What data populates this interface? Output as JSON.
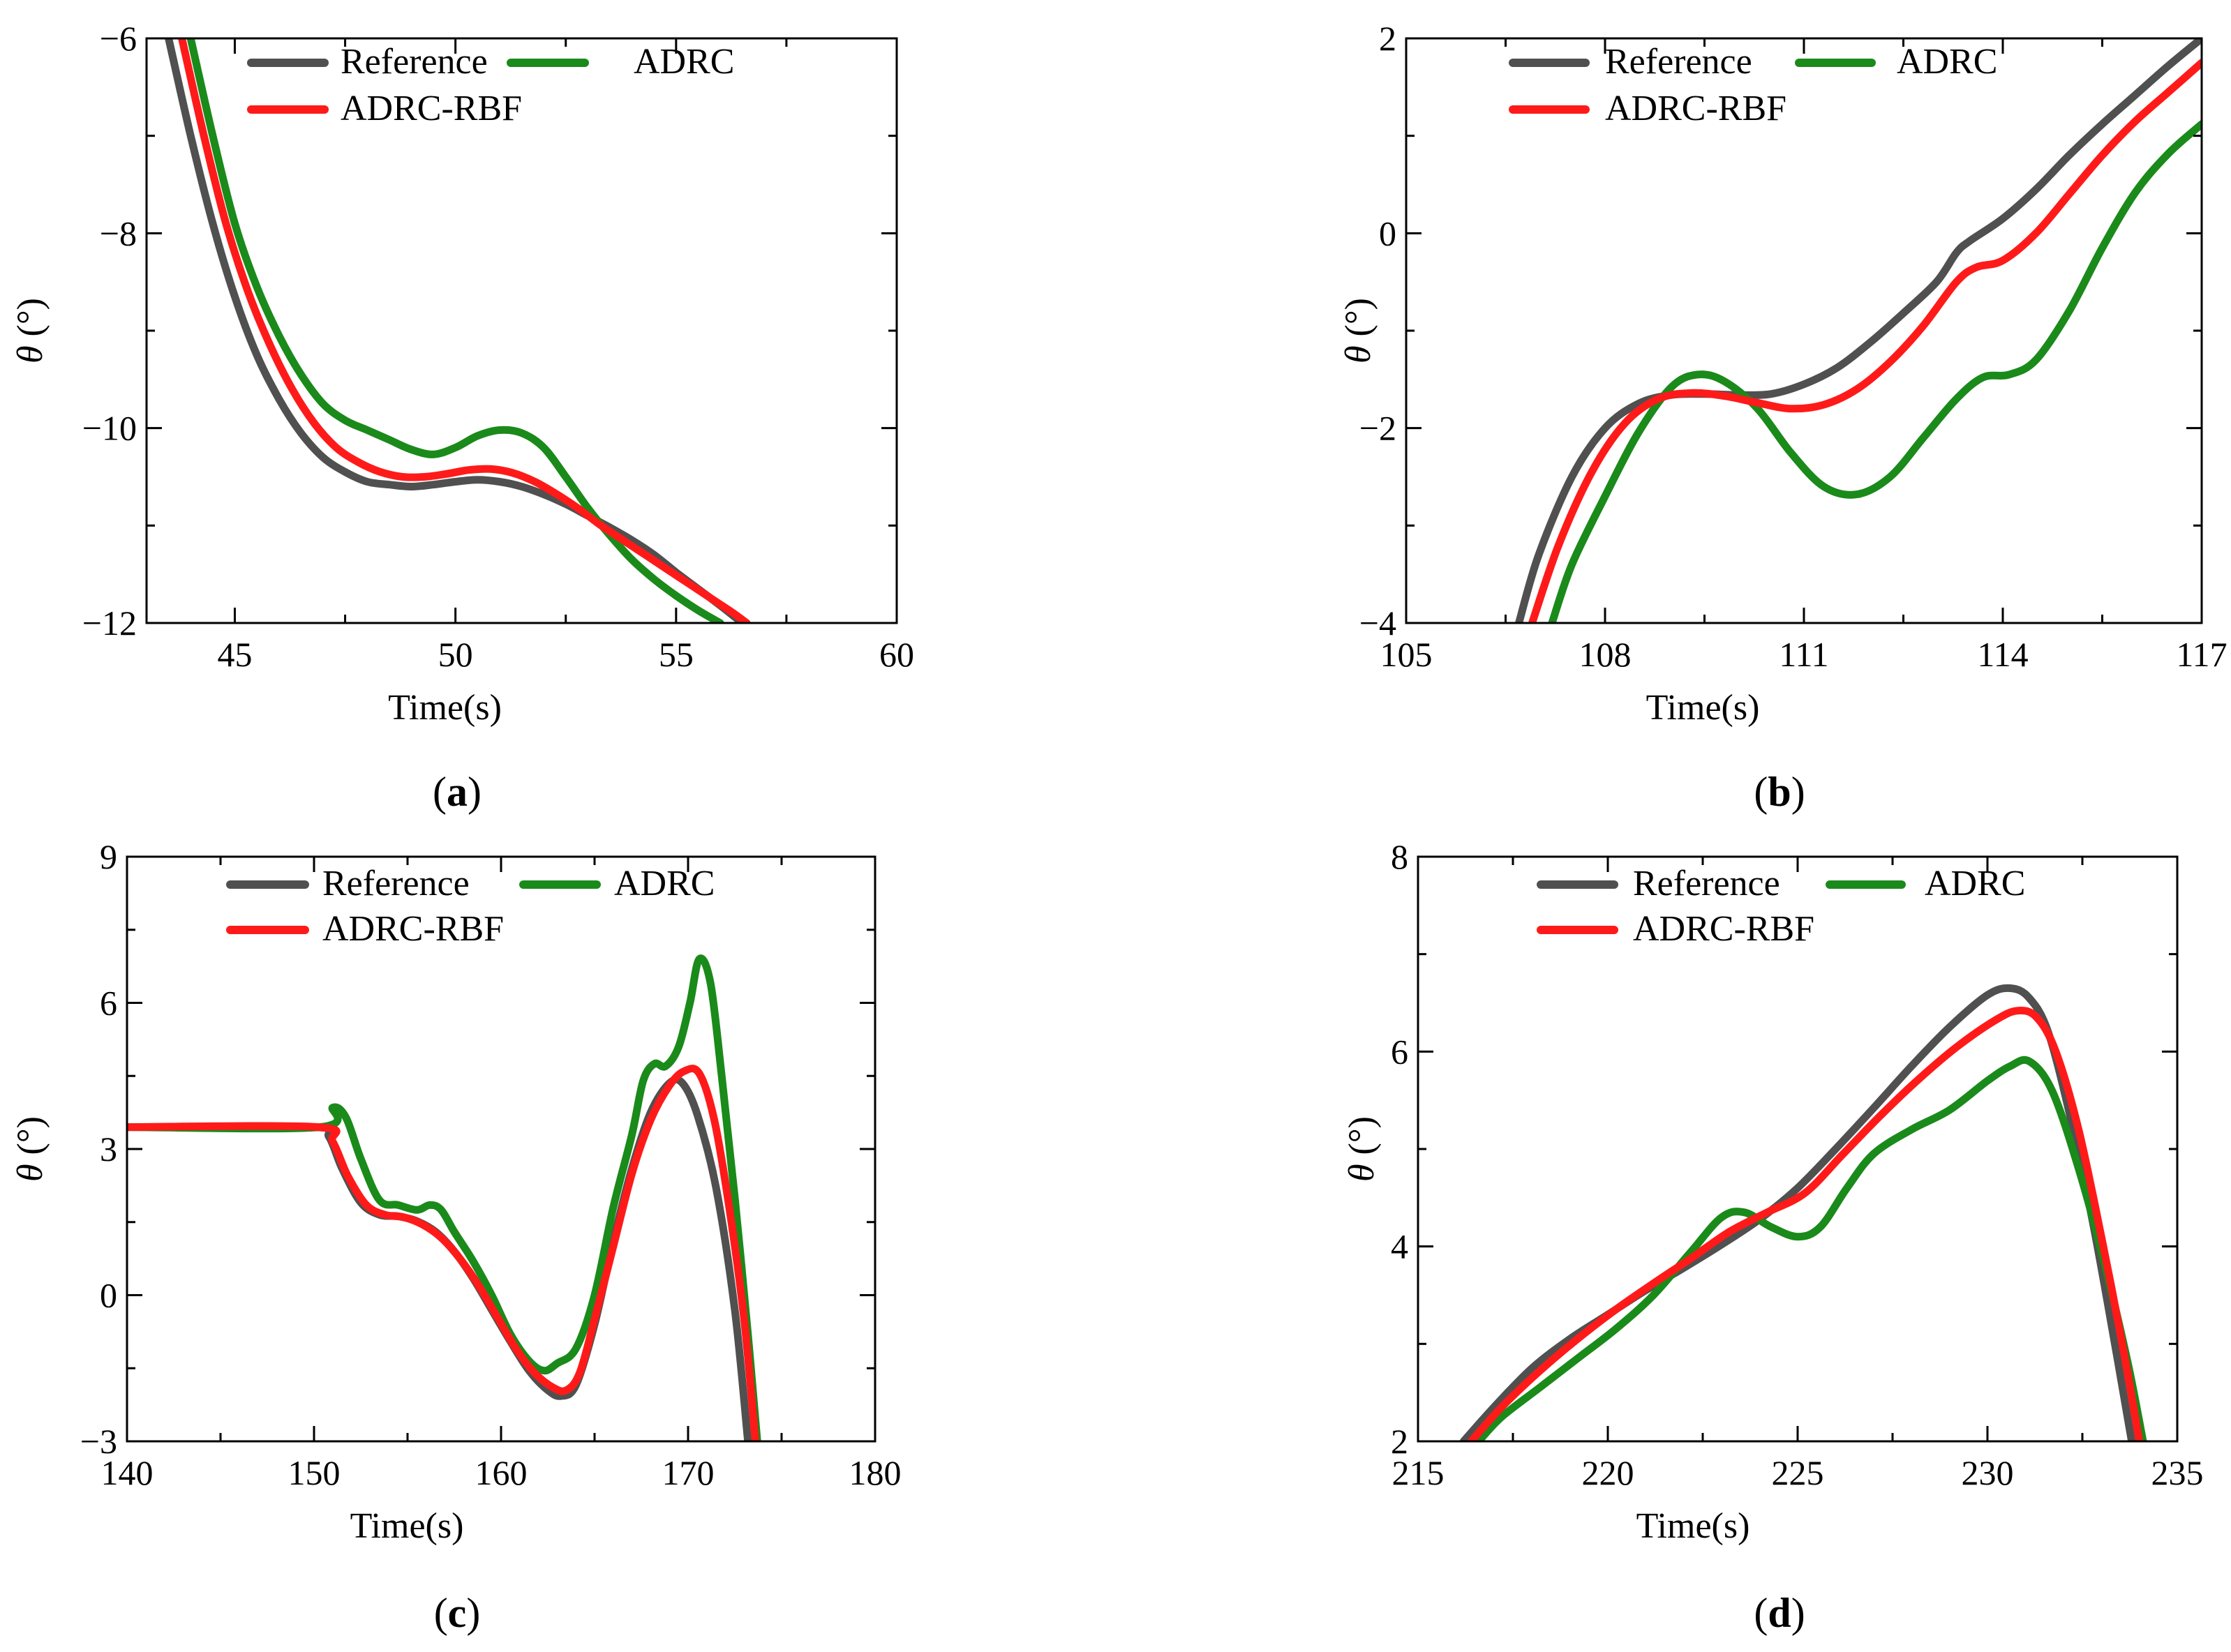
{
  "figure": {
    "theta_symbol": "θ",
    "theta_unit": " (°)"
  },
  "chart_data": [
    {
      "type": "line",
      "panel": "a",
      "panel_label": "a",
      "xlabel": "Time(s)",
      "ylabel": "θ (°)",
      "xlim": [
        43,
        60
      ],
      "ylim": [
        -12,
        -6
      ],
      "xticks": [
        45,
        50,
        55,
        60
      ],
      "yticks": [
        -12,
        -10,
        -8,
        -6
      ],
      "ytick_labels": [
        "−12",
        "−10",
        "−8",
        "−6"
      ],
      "xtick_labels": [
        "45",
        "50",
        "55",
        "60"
      ],
      "legend": [
        "Reference",
        "ADRC",
        "ADRC-RBF"
      ],
      "series": [
        {
          "name": "Reference",
          "color": "#505050",
          "x": [
            43.5,
            44,
            44.5,
            45,
            45.5,
            46,
            46.5,
            47,
            47.5,
            48,
            48.5,
            49,
            49.5,
            50,
            50.5,
            51,
            51.5,
            52,
            52.5,
            53,
            53.5,
            54,
            54.5,
            55,
            55.5,
            56,
            56.5
          ],
          "y": [
            -6.0,
            -7.0,
            -7.9,
            -8.65,
            -9.25,
            -9.7,
            -10.05,
            -10.3,
            -10.45,
            -10.55,
            -10.58,
            -10.6,
            -10.58,
            -10.55,
            -10.53,
            -10.55,
            -10.6,
            -10.68,
            -10.78,
            -10.9,
            -11.02,
            -11.15,
            -11.3,
            -11.48,
            -11.65,
            -11.82,
            -12.0
          ]
        },
        {
          "name": "ADRC",
          "color": "#1a8a1a",
          "x": [
            44,
            44.5,
            45,
            45.5,
            46,
            46.5,
            47,
            47.5,
            48,
            48.5,
            49,
            49.5,
            50,
            50.5,
            51,
            51.5,
            52,
            52.5,
            53,
            53.5,
            54,
            54.5,
            55,
            55.5,
            56
          ],
          "y": [
            -6.0,
            -7.0,
            -7.9,
            -8.55,
            -9.05,
            -9.45,
            -9.75,
            -9.92,
            -10.02,
            -10.12,
            -10.22,
            -10.27,
            -10.2,
            -10.08,
            -10.02,
            -10.05,
            -10.2,
            -10.5,
            -10.82,
            -11.1,
            -11.35,
            -11.55,
            -11.72,
            -11.87,
            -12.0
          ]
        },
        {
          "name": "ADRC-RBF",
          "color": "#ff1a1a",
          "x": [
            43.8,
            44.3,
            44.8,
            45.3,
            45.8,
            46.3,
            46.8,
            47.3,
            47.8,
            48.3,
            48.8,
            49.3,
            49.8,
            50.3,
            50.8,
            51.3,
            51.8,
            52.3,
            52.8,
            53.3,
            53.8,
            54.3,
            54.8,
            55.3,
            55.8,
            56.3,
            56.6
          ],
          "y": [
            -6.0,
            -7.0,
            -7.9,
            -8.6,
            -9.15,
            -9.6,
            -9.95,
            -10.2,
            -10.35,
            -10.45,
            -10.5,
            -10.5,
            -10.47,
            -10.43,
            -10.42,
            -10.46,
            -10.55,
            -10.68,
            -10.83,
            -11.0,
            -11.15,
            -11.3,
            -11.45,
            -11.6,
            -11.75,
            -11.9,
            -12.0
          ]
        }
      ]
    },
    {
      "type": "line",
      "panel": "b",
      "panel_label": "b",
      "xlabel": "Time(s)",
      "ylabel": "θ (°)",
      "xlim": [
        105,
        117
      ],
      "ylim": [
        -4,
        2
      ],
      "xticks": [
        105,
        108,
        111,
        114,
        117
      ],
      "yticks": [
        -4,
        -2,
        0,
        2
      ],
      "ytick_labels": [
        "−4",
        "−2",
        "0",
        "2"
      ],
      "xtick_labels": [
        "105",
        "108",
        "111",
        "114",
        "117"
      ],
      "legend": [
        "Reference",
        "ADRC",
        "ADRC-RBF"
      ],
      "series": [
        {
          "name": "Reference",
          "color": "#505050",
          "x": [
            106.7,
            107,
            107.5,
            108,
            108.5,
            109,
            109.5,
            110,
            110.5,
            111,
            111.5,
            112,
            112.5,
            113,
            113.3,
            113.5,
            114,
            114.5,
            115,
            115.5,
            116,
            116.5,
            117
          ],
          "y": [
            -4.0,
            -3.3,
            -2.5,
            -2.0,
            -1.75,
            -1.66,
            -1.65,
            -1.66,
            -1.65,
            -1.55,
            -1.38,
            -1.12,
            -0.82,
            -0.5,
            -0.2,
            -0.08,
            0.15,
            0.45,
            0.8,
            1.12,
            1.42,
            1.72,
            2.0
          ]
        },
        {
          "name": "ADRC",
          "color": "#1a8a1a",
          "x": [
            107.2,
            107.5,
            108,
            108.5,
            109,
            109.4,
            109.8,
            110.3,
            110.8,
            111.3,
            111.8,
            112.3,
            112.8,
            113.3,
            113.7,
            114.1,
            114.5,
            115,
            115.5,
            116,
            116.5,
            117
          ],
          "y": [
            -4.0,
            -3.4,
            -2.7,
            -2.05,
            -1.58,
            -1.45,
            -1.52,
            -1.8,
            -2.25,
            -2.6,
            -2.68,
            -2.5,
            -2.1,
            -1.7,
            -1.48,
            -1.45,
            -1.3,
            -0.8,
            -0.15,
            0.42,
            0.82,
            1.12
          ]
        },
        {
          "name": "ADRC-RBF",
          "color": "#ff1a1a",
          "x": [
            106.9,
            107.3,
            107.8,
            108.3,
            108.8,
            109.3,
            109.8,
            110.3,
            110.8,
            111.3,
            111.8,
            112.3,
            112.8,
            113.3,
            113.6,
            114,
            114.5,
            115,
            115.5,
            116,
            116.5,
            117
          ],
          "y": [
            -4.0,
            -3.2,
            -2.45,
            -1.95,
            -1.7,
            -1.64,
            -1.67,
            -1.74,
            -1.8,
            -1.76,
            -1.6,
            -1.32,
            -0.95,
            -0.5,
            -0.35,
            -0.28,
            0.0,
            0.4,
            0.8,
            1.15,
            1.45,
            1.75
          ]
        }
      ]
    },
    {
      "type": "line",
      "panel": "c",
      "panel_label": "c",
      "xlabel": "Time(s)",
      "ylabel": "θ (°)",
      "xlim": [
        140,
        180
      ],
      "ylim": [
        -3,
        9
      ],
      "xticks": [
        140,
        150,
        160,
        170,
        180
      ],
      "yticks": [
        -3,
        0,
        3,
        6,
        9
      ],
      "ytick_labels": [
        "−3",
        "0",
        "3",
        "6",
        "9"
      ],
      "xtick_labels": [
        "140",
        "150",
        "160",
        "170",
        "180"
      ],
      "legend": [
        "Reference",
        "ADRC",
        "ADRC-RBF"
      ],
      "series": [
        {
          "name": "Reference",
          "color": "#505050",
          "x": [
            140,
            150,
            150.8,
            151.5,
            152.5,
            153.5,
            154.5,
            155.5,
            156.5,
            157.5,
            158.5,
            159.5,
            160.5,
            161.5,
            162.5,
            163.2,
            164,
            165,
            166,
            167,
            168,
            169,
            169.7,
            170.5,
            171.5,
            172.5,
            173.2
          ],
          "y": [
            3.45,
            3.45,
            3.25,
            2.6,
            1.9,
            1.65,
            1.62,
            1.52,
            1.3,
            0.9,
            0.35,
            -0.3,
            -0.95,
            -1.55,
            -1.95,
            -2.07,
            -1.85,
            -0.6,
            1.1,
            2.6,
            3.75,
            4.35,
            4.35,
            3.7,
            2.2,
            -0.3,
            -3.0
          ]
        },
        {
          "name": "ADRC",
          "color": "#1a8a1a",
          "x": [
            140,
            150.3,
            151,
            151.7,
            152.5,
            153.5,
            154.5,
            155.5,
            156.2,
            156.8,
            157.5,
            158.5,
            159.5,
            160.5,
            161.5,
            162.3,
            163,
            164,
            165,
            166,
            167,
            167.6,
            168.2,
            168.8,
            169.5,
            170.1,
            170.6,
            171.2,
            171.8,
            172.5,
            173.2,
            173.7
          ],
          "y": [
            3.45,
            3.45,
            3.85,
            3.65,
            2.8,
            1.95,
            1.85,
            1.75,
            1.85,
            1.75,
            1.3,
            0.7,
            0.0,
            -0.8,
            -1.35,
            -1.55,
            -1.4,
            -1.1,
            0.0,
            1.8,
            3.3,
            4.4,
            4.75,
            4.7,
            5.1,
            6.0,
            6.9,
            6.4,
            4.5,
            2.0,
            -0.8,
            -3.0
          ]
        },
        {
          "name": "ADRC-RBF",
          "color": "#ff1a1a",
          "x": [
            140,
            150.2,
            151,
            151.8,
            152.8,
            153.8,
            154.8,
            155.8,
            156.8,
            157.8,
            158.8,
            159.8,
            160.8,
            161.8,
            162.8,
            163.5,
            164.2,
            165,
            166,
            167,
            168,
            169,
            169.8,
            170.6,
            171.4,
            172.2,
            173,
            173.6
          ],
          "y": [
            3.45,
            3.45,
            3.15,
            2.45,
            1.85,
            1.65,
            1.6,
            1.45,
            1.18,
            0.75,
            0.2,
            -0.45,
            -1.1,
            -1.6,
            -1.9,
            -1.95,
            -1.6,
            -0.5,
            1.0,
            2.5,
            3.6,
            4.3,
            4.6,
            4.55,
            3.6,
            1.8,
            -0.5,
            -3.0
          ]
        }
      ]
    },
    {
      "type": "line",
      "panel": "d",
      "panel_label": "d",
      "xlabel": "Time(s)",
      "ylabel": "θ (°)",
      "xlim": [
        215,
        235
      ],
      "ylim": [
        2,
        8
      ],
      "xticks": [
        215,
        220,
        225,
        230,
        235
      ],
      "yticks": [
        2,
        4,
        6,
        8
      ],
      "ytick_labels": [
        "2",
        "4",
        "6",
        "8"
      ],
      "xtick_labels": [
        "215",
        "220",
        "225",
        "230",
        "235"
      ],
      "legend": [
        "Reference",
        "ADRC",
        "ADRC-RBF"
      ],
      "series": [
        {
          "name": "Reference",
          "color": "#505050",
          "x": [
            216.2,
            217,
            218,
            219,
            220,
            221,
            222,
            223,
            224,
            225,
            226,
            227,
            228,
            229,
            230,
            230.6,
            231.1,
            231.6,
            232.2,
            232.8,
            233.4,
            233.8
          ],
          "y": [
            2.0,
            2.35,
            2.75,
            3.05,
            3.3,
            3.55,
            3.78,
            4.02,
            4.28,
            4.6,
            5.0,
            5.42,
            5.85,
            6.25,
            6.58,
            6.65,
            6.55,
            6.2,
            5.3,
            4.2,
            2.9,
            2.0
          ]
        },
        {
          "name": "ADRC",
          "color": "#1a8a1a",
          "x": [
            216.6,
            217.2,
            218.2,
            219.2,
            220.2,
            221.2,
            222.2,
            223,
            223.6,
            224.3,
            225,
            225.6,
            226.3,
            227,
            228,
            229,
            230,
            230.6,
            231.1,
            231.7,
            232.4,
            233.1,
            233.7,
            234.1
          ],
          "y": [
            2.0,
            2.25,
            2.55,
            2.85,
            3.15,
            3.5,
            3.95,
            4.3,
            4.35,
            4.2,
            4.1,
            4.2,
            4.6,
            4.95,
            5.2,
            5.4,
            5.7,
            5.85,
            5.9,
            5.6,
            4.8,
            3.8,
            2.8,
            2.0
          ]
        },
        {
          "name": "ADRC-RBF",
          "color": "#ff1a1a",
          "x": [
            216.4,
            217.2,
            218.2,
            219.2,
            220.2,
            221.2,
            222.2,
            223.2,
            224.2,
            225.2,
            226.2,
            227.2,
            228.2,
            229.2,
            230.2,
            230.8,
            231.3,
            231.8,
            232.4,
            233,
            233.6,
            234
          ],
          "y": [
            2.0,
            2.35,
            2.72,
            3.05,
            3.35,
            3.62,
            3.88,
            4.15,
            4.35,
            4.55,
            4.95,
            5.35,
            5.72,
            6.05,
            6.32,
            6.42,
            6.35,
            6.0,
            5.2,
            4.1,
            2.9,
            2.0
          ]
        }
      ]
    }
  ]
}
